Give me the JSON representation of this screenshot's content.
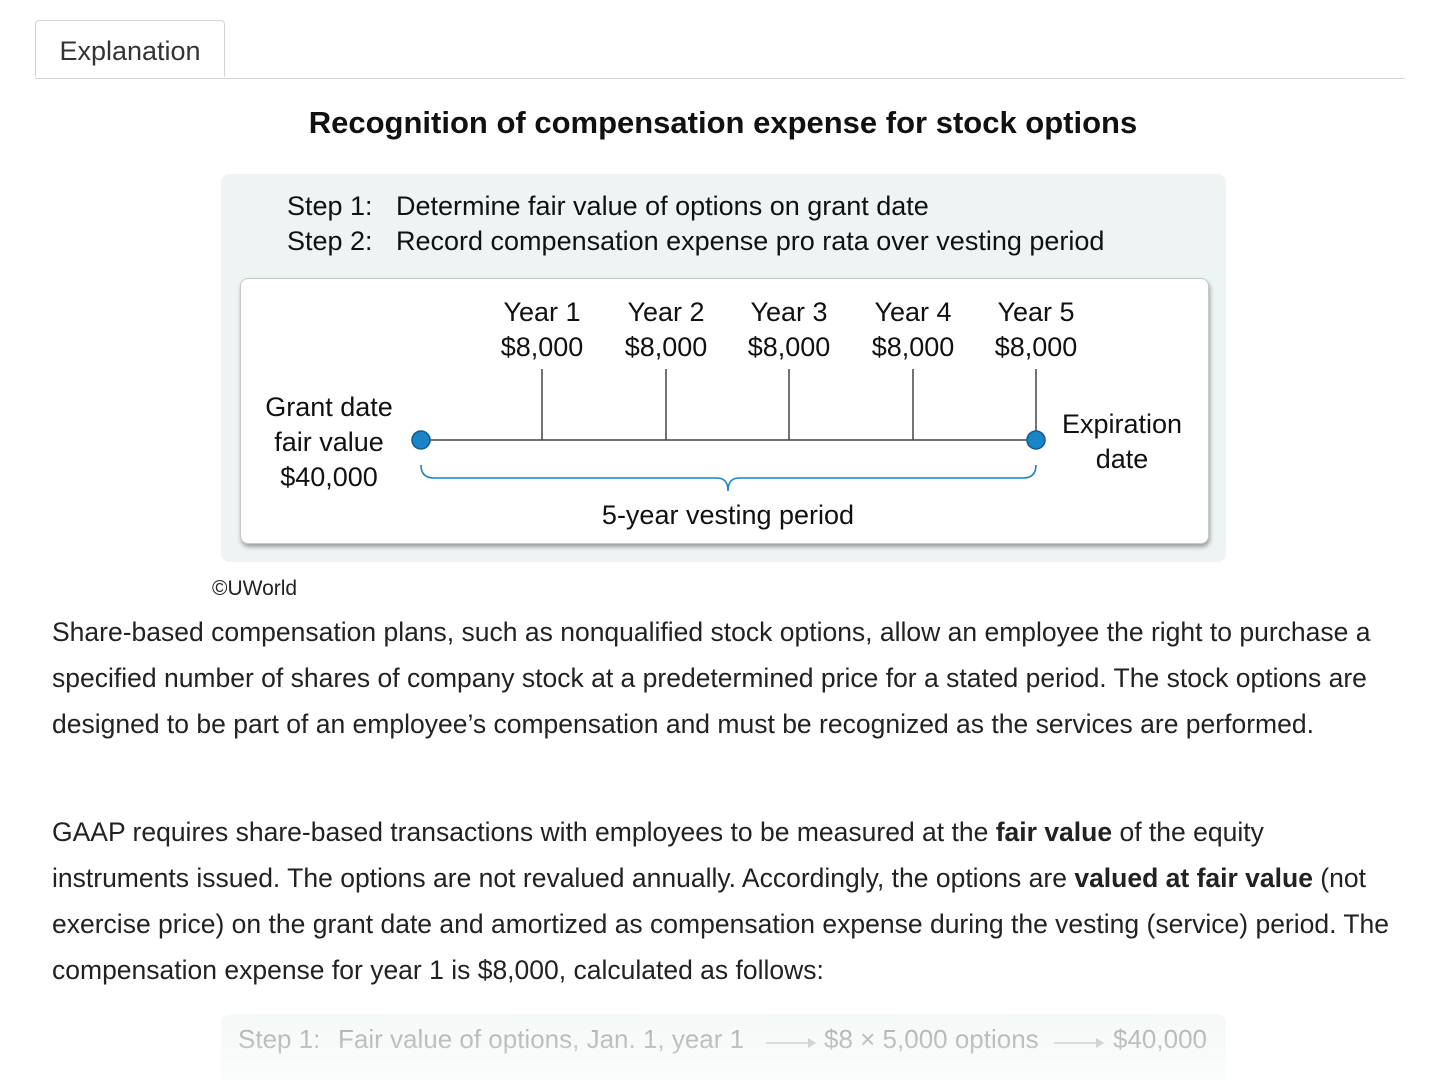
{
  "tabs": [
    {
      "label": "Explanation"
    }
  ],
  "figure": {
    "title": "Recognition of compensation expense for stock options",
    "steps": [
      {
        "label": "Step 1:",
        "text": "Determine fair value of options on grant date"
      },
      {
        "label": "Step 2:",
        "text": "Record compensation expense pro rata over vesting period"
      }
    ],
    "timeline": {
      "start_label": [
        "Grant date",
        "fair value",
        "$40,000"
      ],
      "end_label": [
        "Expiration",
        "date"
      ],
      "years": [
        {
          "year": "Year 1",
          "amount": "$8,000"
        },
        {
          "year": "Year 2",
          "amount": "$8,000"
        },
        {
          "year": "Year 3",
          "amount": "$8,000"
        },
        {
          "year": "Year 4",
          "amount": "$8,000"
        },
        {
          "year": "Year 5",
          "amount": "$8,000"
        }
      ],
      "brace_label": "5-year vesting period",
      "accent_color": "#1a84c7"
    },
    "copyright": "©UWorld"
  },
  "paragraphs": {
    "p1": "Share-based compensation plans, such as nonqualified stock options, allow an employee the right to purchase a specified number of shares of company stock at a predetermined price for a stated period. The stock options are designed to be part of an employee’s compensation and must be recognized as the services are performed.",
    "p2": {
      "a": "GAAP requires share-based transactions with employees to be measured at the ",
      "b_bold": "fair value",
      "c": " of the equity instruments issued.  The options are not revalued annually.  Accordingly, the options are ",
      "d_bold": "valued at fair value",
      "e": " (not exercise price) on the grant date and amortized as compensation expense during the vesting (service) period.  The compensation expense for year 1 is $8,000, calculated as follows:"
    }
  },
  "calc_panel": {
    "step": "Step 1:",
    "desc": "Fair value of options, Jan. 1, year 1",
    "formula": "$8 × 5,000 options",
    "result": "$40,000"
  }
}
